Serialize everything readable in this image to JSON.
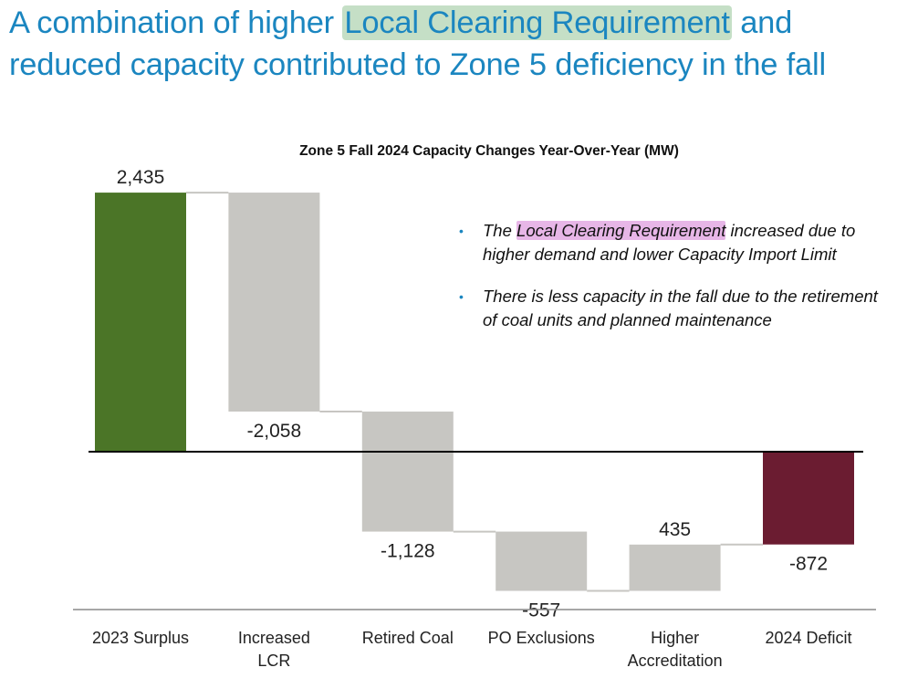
{
  "headline": {
    "part1": "A combination of higher ",
    "highlight": "Local Clearing Requirement",
    "part2": " and reduced capacity contributed to Zone 5 deficiency in the fall"
  },
  "bullets": [
    {
      "pre": "The ",
      "highlight": "Local Clearing Requirement",
      "post": " increased due to higher demand and lower Capacity Import Limit"
    },
    {
      "pre": "There is less capacity in the fall due to the retirement of coal units and planned maintenance",
      "highlight": "",
      "post": ""
    }
  ],
  "colors": {
    "headline": "#1b86c0",
    "surplus": "#4b7527",
    "change": "#c7c6c2",
    "deficit": "#6b1c31",
    "bullet_dot": "#1b86c0"
  },
  "chart_data": {
    "type": "waterfall",
    "title": "Zone 5 Fall 2024 Capacity Changes Year-Over-Year (MW)",
    "categories": [
      "2023 Surplus",
      "Increased LCR",
      "Retired Coal",
      "PO Exclusions",
      "Higher Accreditation",
      "2024 Deficit"
    ],
    "category_lines": [
      [
        "2023 Surplus"
      ],
      [
        "Increased",
        "LCR"
      ],
      [
        "Retired Coal"
      ],
      [
        "PO Exclusions"
      ],
      [
        "Higher",
        "Accreditation"
      ],
      [
        "2024 Deficit"
      ]
    ],
    "values": [
      2435,
      -2058,
      -1128,
      -557,
      435,
      -872
    ],
    "labels": [
      "2,435",
      "-2,058",
      "-1,128",
      "-557",
      "435",
      "-872"
    ],
    "kinds": [
      "total",
      "delta",
      "delta",
      "delta",
      "delta",
      "total"
    ],
    "ylim": [
      -1500,
      2800
    ],
    "zero_line": true
  }
}
